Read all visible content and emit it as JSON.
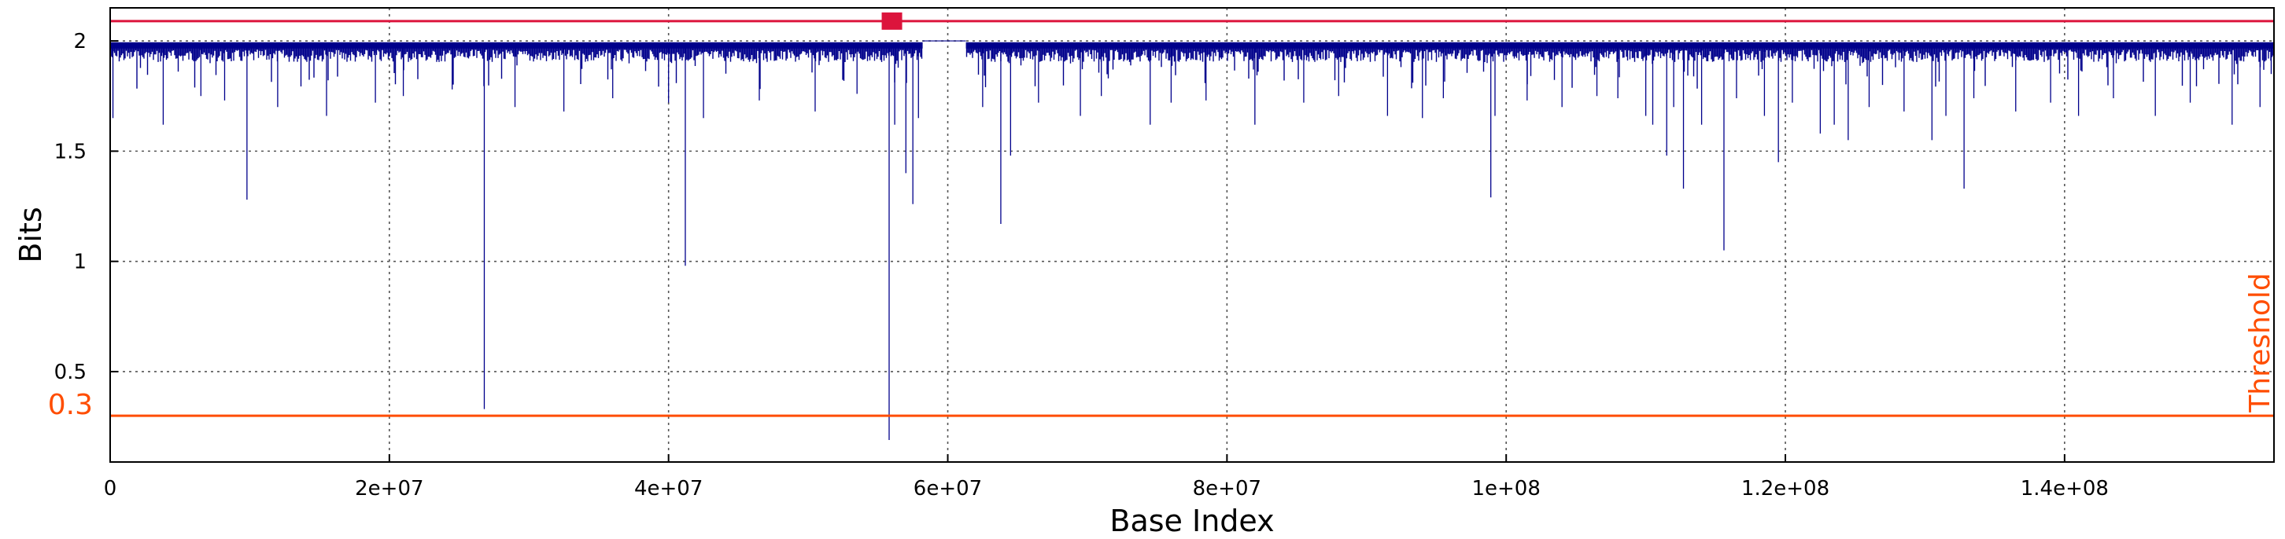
{
  "chart_data": {
    "type": "line",
    "xlabel": "Base Index",
    "ylabel": "Bits",
    "xlim": [
      0,
      155000000
    ],
    "ylim": [
      0.09,
      2.15
    ],
    "x_ticks": [
      {
        "value": 0,
        "label": "0"
      },
      {
        "value": 20000000,
        "label": "2e+07"
      },
      {
        "value": 40000000,
        "label": "4e+07"
      },
      {
        "value": 60000000,
        "label": "6e+07"
      },
      {
        "value": 80000000,
        "label": "8e+07"
      },
      {
        "value": 100000000,
        "label": "1e+08"
      },
      {
        "value": 120000000,
        "label": "1.2e+08"
      },
      {
        "value": 140000000,
        "label": "1.4e+08"
      }
    ],
    "y_ticks": [
      {
        "value": 0.5,
        "label": "0.5"
      },
      {
        "value": 1,
        "label": "1"
      },
      {
        "value": 1.5,
        "label": "1.5"
      },
      {
        "value": 2,
        "label": "2"
      }
    ],
    "grid": true,
    "colors": {
      "series": "#00008b",
      "threshold": "#ff4d00",
      "top_line": "#dc143c"
    },
    "series": [
      {
        "baseline": 1.97,
        "gap": [
          58200000,
          61300000
        ],
        "dips": [
          [
            200000,
            1.65
          ],
          [
            3800000,
            1.62
          ],
          [
            6500000,
            1.75
          ],
          [
            8200000,
            1.73
          ],
          [
            9800000,
            1.28
          ],
          [
            12000000,
            1.7
          ],
          [
            15500000,
            1.66
          ],
          [
            19000000,
            1.72
          ],
          [
            21000000,
            1.75
          ],
          [
            24500000,
            1.78
          ],
          [
            26800000,
            0.33
          ],
          [
            29000000,
            1.7
          ],
          [
            32500000,
            1.68
          ],
          [
            36000000,
            1.74
          ],
          [
            40000000,
            1.72
          ],
          [
            41200000,
            0.98
          ],
          [
            42500000,
            1.65
          ],
          [
            46500000,
            1.73
          ],
          [
            50500000,
            1.68
          ],
          [
            53500000,
            1.76
          ],
          [
            55800000,
            0.19
          ],
          [
            56200000,
            1.62
          ],
          [
            57000000,
            1.4
          ],
          [
            57500000,
            1.26
          ],
          [
            57900000,
            1.65
          ],
          [
            62500000,
            1.7
          ],
          [
            63800000,
            1.17
          ],
          [
            64500000,
            1.48
          ],
          [
            66500000,
            1.72
          ],
          [
            69500000,
            1.66
          ],
          [
            71000000,
            1.75
          ],
          [
            74500000,
            1.62
          ],
          [
            76000000,
            1.72
          ],
          [
            78500000,
            1.73
          ],
          [
            82000000,
            1.62
          ],
          [
            85500000,
            1.72
          ],
          [
            88000000,
            1.75
          ],
          [
            91500000,
            1.66
          ],
          [
            94000000,
            1.65
          ],
          [
            95500000,
            1.74
          ],
          [
            98900000,
            1.29
          ],
          [
            99200000,
            1.66
          ],
          [
            101500000,
            1.73
          ],
          [
            104000000,
            1.7
          ],
          [
            106500000,
            1.75
          ],
          [
            108000000,
            1.74
          ],
          [
            110000000,
            1.66
          ],
          [
            110500000,
            1.62
          ],
          [
            111500000,
            1.48
          ],
          [
            112000000,
            1.7
          ],
          [
            112700000,
            1.33
          ],
          [
            114000000,
            1.62
          ],
          [
            115600000,
            1.05
          ],
          [
            116500000,
            1.74
          ],
          [
            118500000,
            1.66
          ],
          [
            119500000,
            1.45
          ],
          [
            120500000,
            1.72
          ],
          [
            122500000,
            1.58
          ],
          [
            123500000,
            1.62
          ],
          [
            124500000,
            1.55
          ],
          [
            126000000,
            1.7
          ],
          [
            128500000,
            1.68
          ],
          [
            130500000,
            1.55
          ],
          [
            131500000,
            1.66
          ],
          [
            132800000,
            1.33
          ],
          [
            133500000,
            1.74
          ],
          [
            136500000,
            1.68
          ],
          [
            139000000,
            1.72
          ],
          [
            141000000,
            1.66
          ],
          [
            143500000,
            1.74
          ],
          [
            146500000,
            1.66
          ],
          [
            149000000,
            1.72
          ],
          [
            152000000,
            1.62
          ],
          [
            154000000,
            1.7
          ],
          [
            154800000,
            1.85
          ]
        ]
      }
    ],
    "threshold": {
      "value": 0.3,
      "label": "0.3",
      "text": "Threshold"
    },
    "top_line": {
      "value": 2.09
    },
    "marker": {
      "x": 56000000,
      "y": 2.09
    }
  }
}
